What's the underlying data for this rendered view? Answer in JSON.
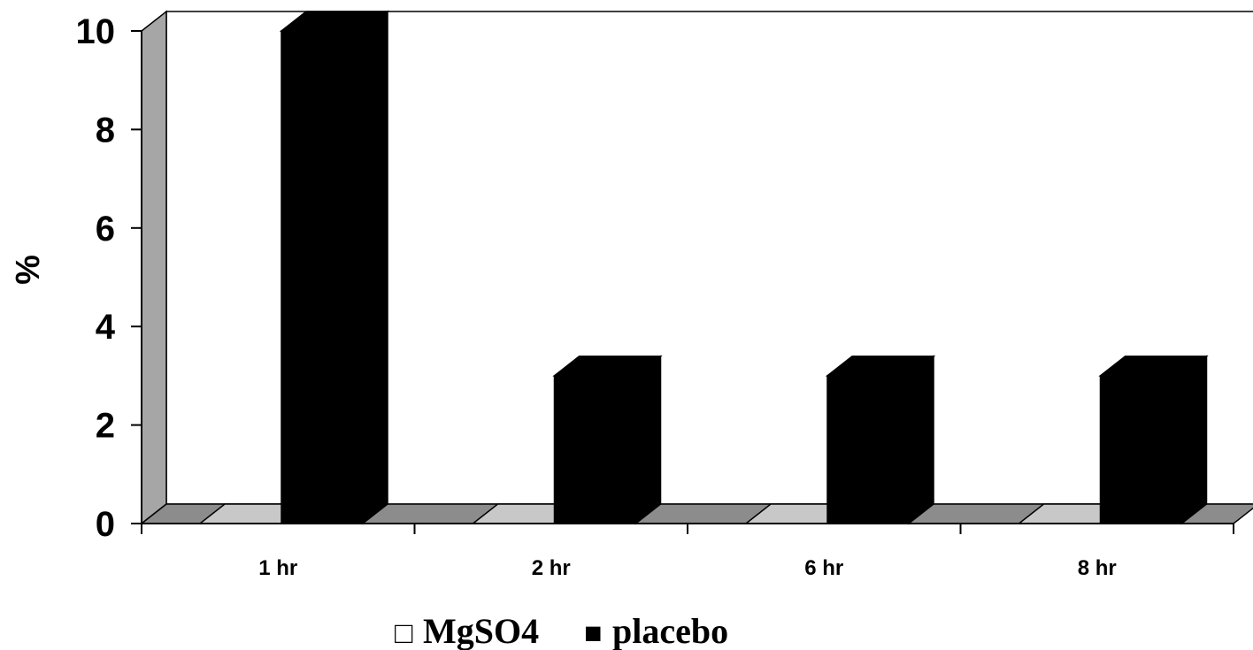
{
  "chart_data": {
    "type": "bar",
    "categories": [
      "1 hr",
      "2 hr",
      "6 hr",
      "8 hr"
    ],
    "series": [
      {
        "name": "MgSO4",
        "values": [
          0,
          0,
          0,
          0
        ],
        "color": "#ffffff"
      },
      {
        "name": "placebo",
        "values": [
          10,
          3,
          3,
          3
        ],
        "color": "#000000"
      }
    ],
    "title": "",
    "xlabel": "",
    "ylabel": "%",
    "ylim": [
      0,
      10
    ],
    "yticks": [
      "0",
      "2",
      "4",
      "6",
      "8",
      "10"
    ],
    "grid": false,
    "three_d": true,
    "legend": {
      "position": "bottom",
      "markers": [
        "□",
        "■"
      ]
    },
    "colors": {
      "back_wall": "#ffffff",
      "side_wall": "#a6a6a6",
      "floor": "#8c8c8c",
      "floor_light": "#c8c8c8"
    }
  }
}
